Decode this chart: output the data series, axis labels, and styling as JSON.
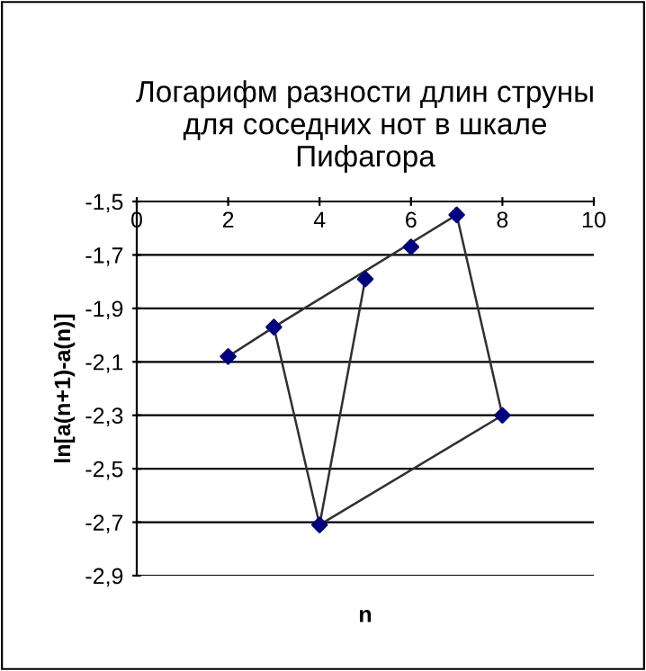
{
  "chart_data": {
    "type": "line",
    "title": "Логарифм разности длин струны\nдля соседних нот в шкале\nПифагора",
    "xlabel": "n",
    "ylabel": "ln[a(n+1)-a(n)]",
    "series": [
      {
        "color": "#303030",
        "marker": "none",
        "x": [
          2,
          3,
          null,
          5,
          4,
          3,
          7,
          8,
          4
        ],
        "values": [
          -2.08,
          -1.97,
          null,
          -1.79,
          -2.71,
          -1.97,
          -1.55,
          -2.3,
          -2.71
        ]
      },
      {
        "type": "scatter",
        "color": "#000080",
        "marker": "diamond",
        "x": [
          2,
          3,
          4,
          5,
          6,
          7,
          8
        ],
        "values": [
          -2.08,
          -1.97,
          -2.71,
          -1.79,
          -1.67,
          -1.55,
          -2.3
        ]
      }
    ],
    "xlim": [
      0,
      10
    ],
    "xticks": [
      0,
      2,
      4,
      6,
      8,
      10
    ],
    "ylim": [
      -2.9,
      -1.5
    ],
    "yticks": [
      {
        "value": -2.9,
        "label": "-2,9"
      },
      {
        "value": -2.7,
        "label": "-2,7"
      },
      {
        "value": -2.5,
        "label": "-2,5"
      },
      {
        "value": -2.3,
        "label": "-2,3"
      },
      {
        "value": -2.1,
        "label": "-2,1"
      },
      {
        "value": -1.9,
        "label": "-1,9"
      },
      {
        "value": -1.7,
        "label": "-1,7"
      },
      {
        "value": -1.5,
        "label": "-1,5"
      }
    ],
    "grid": "y"
  }
}
